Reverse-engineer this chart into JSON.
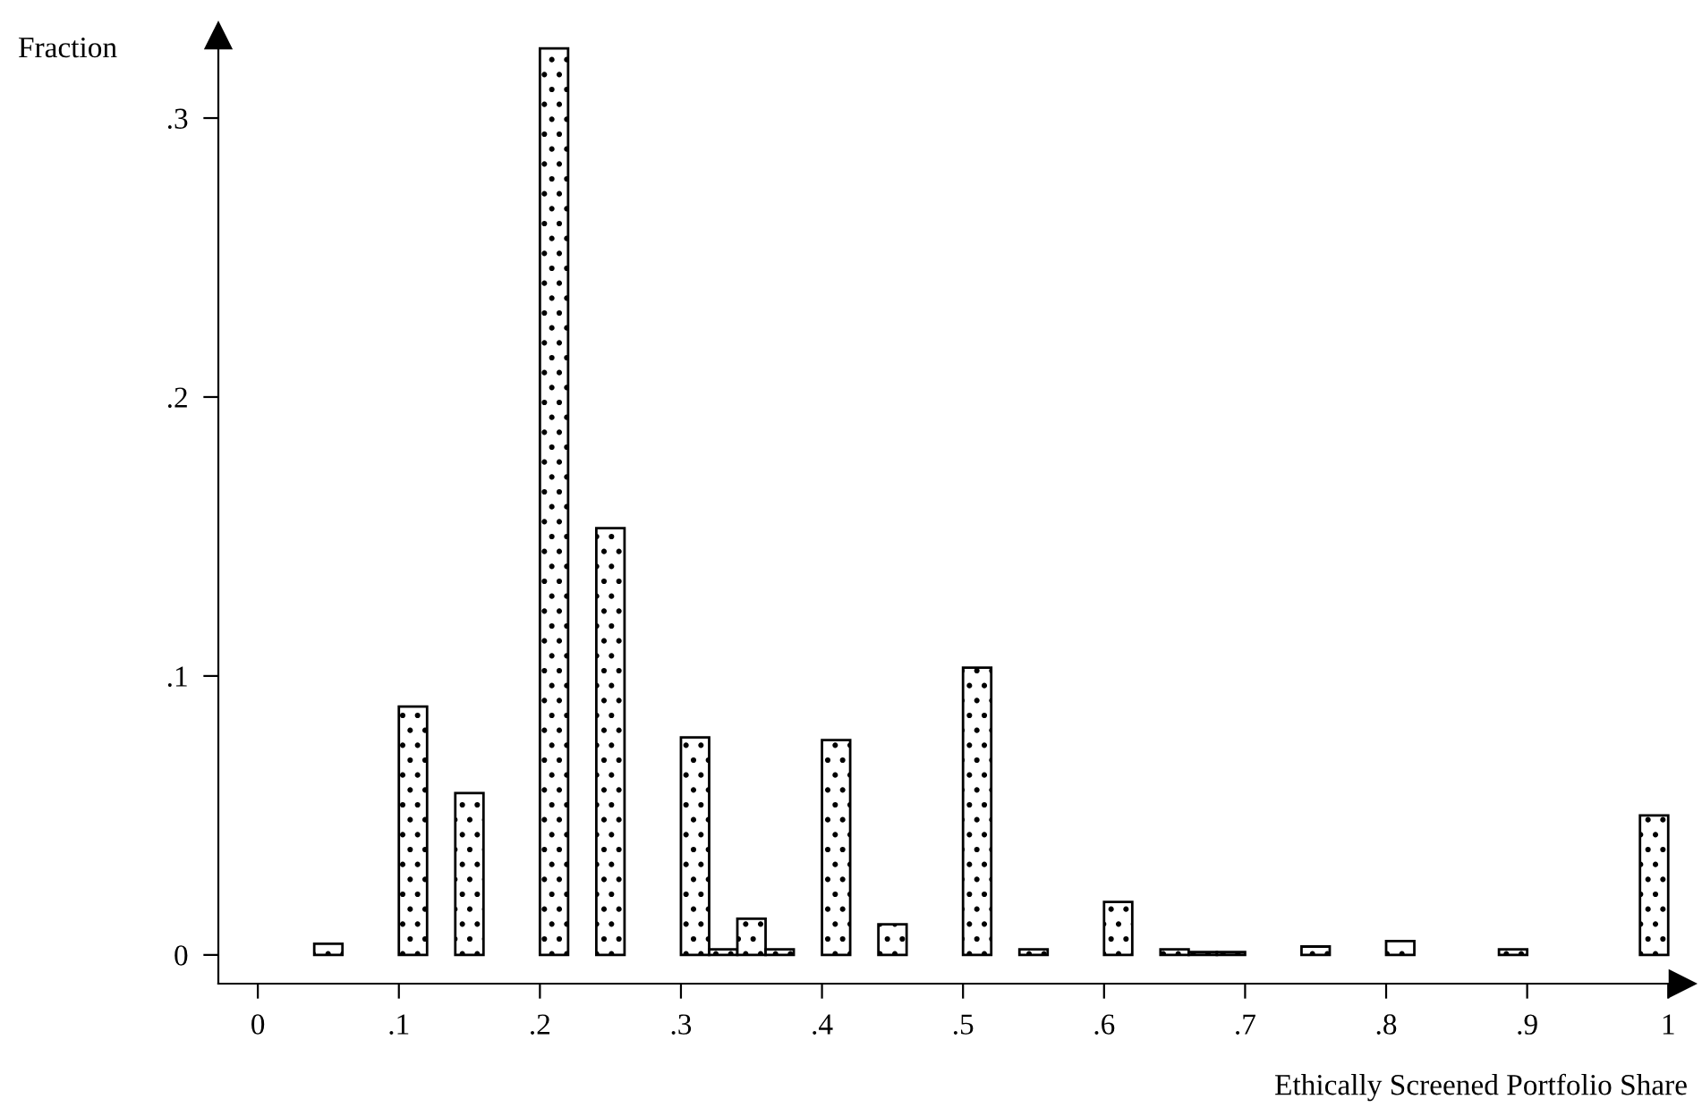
{
  "chart_data": {
    "type": "bar",
    "xlabel": "Ethically Screened Portfolio Share",
    "ylabel": "Fraction",
    "x": [
      0.05,
      0.11,
      0.15,
      0.21,
      0.25,
      0.31,
      0.33,
      0.35,
      0.37,
      0.41,
      0.45,
      0.51,
      0.55,
      0.61,
      0.65,
      0.67,
      0.69,
      0.75,
      0.81,
      0.89,
      0.99
    ],
    "values": [
      0.004,
      0.089,
      0.058,
      0.325,
      0.153,
      0.078,
      0.002,
      0.013,
      0.002,
      0.077,
      0.011,
      0.103,
      0.002,
      0.019,
      0.002,
      0.001,
      0.001,
      0.003,
      0.005,
      0.002,
      0.05
    ],
    "color": "#000000",
    "xlim": [
      -0.028,
      1.01
    ],
    "ylim": [
      -0.0103,
      0.3295
    ],
    "xticks": [
      0,
      {
        "value": 0.1,
        "label": ".1"
      },
      {
        "value": 0.2,
        "label": ".2"
      },
      {
        "value": 0.3,
        "label": ".3"
      },
      {
        "value": 0.4,
        "label": ".4"
      },
      {
        "value": 0.5,
        "label": ".5"
      },
      {
        "value": 0.6,
        "label": ".6"
      },
      {
        "value": 0.7,
        "label": ".7"
      },
      {
        "value": 0.8,
        "label": ".8"
      },
      {
        "value": 0.9,
        "label": ".9"
      },
      1
    ],
    "yticks": [
      0,
      {
        "value": 0.1,
        "label": ".1"
      },
      {
        "value": 0.2,
        "label": ".2"
      },
      {
        "value": 0.3,
        "label": ".3"
      }
    ]
  }
}
